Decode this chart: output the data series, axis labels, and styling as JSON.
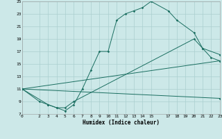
{
  "title": "",
  "xlabel": "Humidex (Indice chaleur)",
  "ylabel": "",
  "xlim": [
    0,
    23
  ],
  "ylim": [
    7,
    25
  ],
  "xticks": [
    0,
    2,
    3,
    4,
    5,
    6,
    7,
    8,
    9,
    10,
    11,
    12,
    13,
    14,
    15,
    17,
    18,
    19,
    20,
    21,
    22,
    23
  ],
  "yticks": [
    7,
    9,
    11,
    13,
    15,
    17,
    19,
    21,
    23,
    25
  ],
  "bg_color": "#cce8e8",
  "line_color": "#1a6e60",
  "grid_color": "#aacfcf",
  "curve1_x": [
    0,
    2,
    3,
    4,
    5,
    6,
    7,
    8,
    9,
    10,
    11,
    12,
    13,
    14,
    15,
    17,
    18,
    20,
    21,
    22,
    23
  ],
  "curve1_y": [
    11,
    9,
    8.5,
    8,
    7.5,
    8.5,
    11,
    14,
    17,
    17,
    22,
    23,
    23.5,
    24,
    25,
    23.5,
    22,
    20,
    17.5,
    16,
    15.5
  ],
  "curve2_x": [
    0,
    3,
    4,
    5,
    6,
    20,
    21,
    23
  ],
  "curve2_y": [
    11,
    8.5,
    8,
    8,
    9,
    19,
    17.5,
    16.5
  ],
  "curve3_x": [
    0,
    23
  ],
  "curve3_y": [
    11,
    15.5
  ],
  "curve4_x": [
    0,
    23
  ],
  "curve4_y": [
    11,
    9.5
  ]
}
